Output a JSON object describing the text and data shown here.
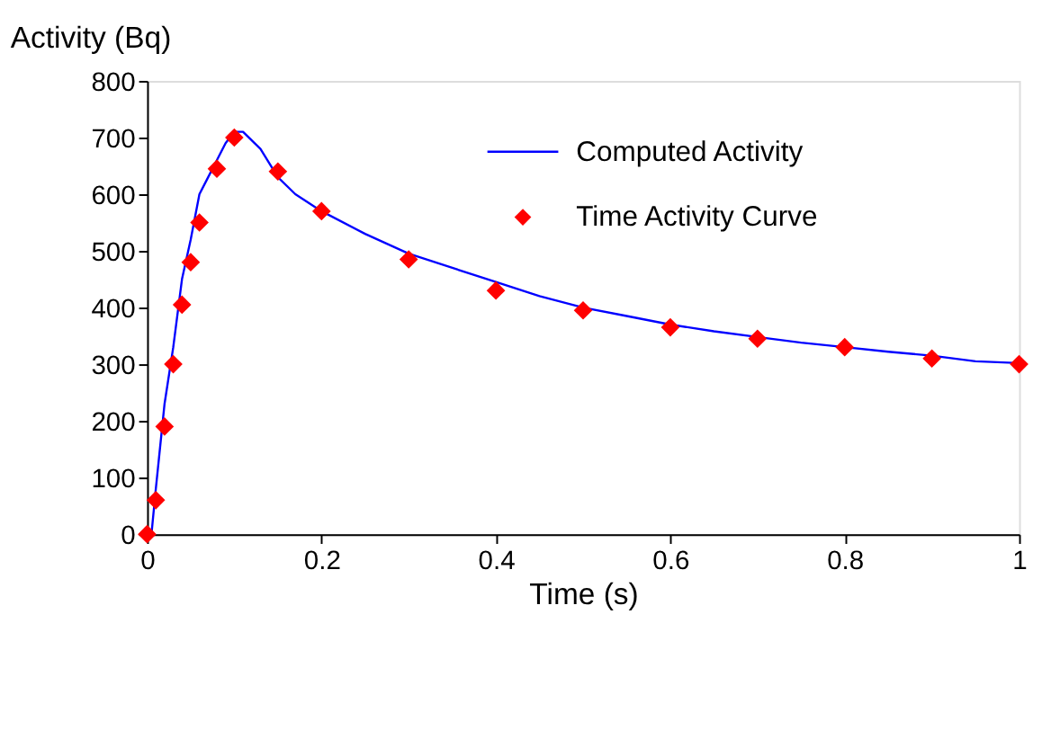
{
  "chart_data": {
    "type": "line",
    "xlabel": "Time (s)",
    "ylabel": "Activity (Bq)",
    "xlim": [
      0,
      1
    ],
    "xticks": [
      0,
      0.2,
      0.4,
      0.6,
      0.8,
      1
    ],
    "ylim": [
      0,
      800
    ],
    "yticks": [
      0,
      100,
      200,
      300,
      400,
      500,
      600,
      700,
      800
    ],
    "grid": false,
    "legend": "top right",
    "series": [
      {
        "name": "Computed Activity",
        "marker": "none",
        "color": "#0000ff",
        "x": [
          0,
          0.005,
          0.01,
          0.02,
          0.03,
          0.04,
          0.05,
          0.06,
          0.07,
          0.08,
          0.09,
          0.1,
          0.11,
          0.13,
          0.15,
          0.17,
          0.2,
          0.25,
          0.3,
          0.35,
          0.4,
          0.45,
          0.5,
          0.55,
          0.6,
          0.65,
          0.7,
          0.75,
          0.8,
          0.85,
          0.9,
          0.95,
          1.0
        ],
        "values": [
          0,
          0,
          80,
          230,
          330,
          450,
          520,
          600,
          630,
          660,
          690,
          710,
          710,
          680,
          630,
          600,
          570,
          530,
          495,
          470,
          445,
          420,
          400,
          385,
          370,
          358,
          348,
          338,
          330,
          322,
          315,
          305,
          302
        ]
      },
      {
        "name": "Time Activity Curve",
        "type": "scatter",
        "marker": "diamond",
        "color": "#ff0000",
        "x": [
          0,
          0.01,
          0.02,
          0.03,
          0.04,
          0.05,
          0.06,
          0.08,
          0.1,
          0.15,
          0.2,
          0.3,
          0.4,
          0.5,
          0.6,
          0.7,
          0.8,
          0.9,
          1
        ],
        "values": [
          0,
          60,
          190,
          300,
          405,
          480,
          550,
          645,
          700,
          640,
          570,
          485,
          430,
          395,
          365,
          345,
          330,
          310,
          300
        ]
      }
    ]
  }
}
